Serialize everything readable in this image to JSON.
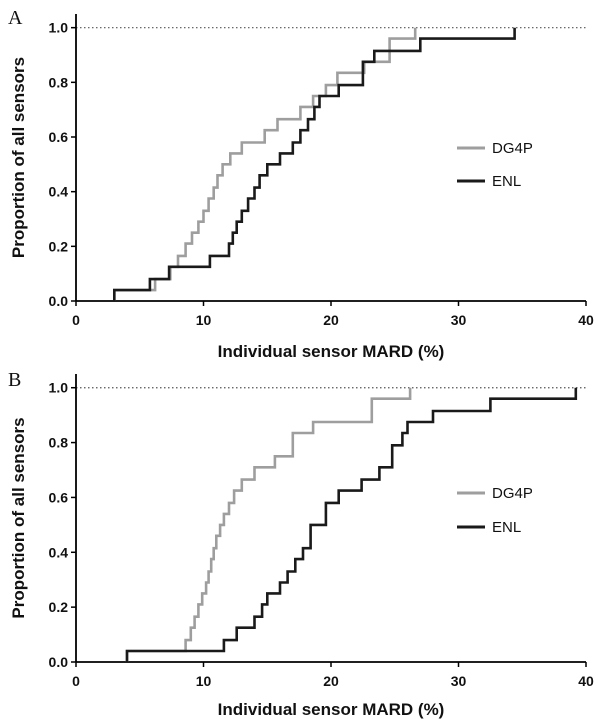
{
  "colors": {
    "dg4p": "#9e9e9e",
    "enl": "#1a1a1a",
    "axis": "#000000",
    "refline": "#555555"
  },
  "chart_data": [
    {
      "type": "line",
      "step": true,
      "panel_label": "A",
      "xlabel": "Individual sensor MARD (%)",
      "ylabel": "Proportion of all sensors",
      "xlim": [
        0,
        40
      ],
      "ylim": [
        0,
        1.05
      ],
      "x_ticks": [
        "0",
        "10",
        "20",
        "30",
        "40"
      ],
      "y_ticks": [
        "0.0",
        "0.2",
        "0.4",
        "0.6",
        "0.8",
        "1.0"
      ],
      "reference_line_y": 1.0,
      "legend_position": "right",
      "series": [
        {
          "name": "DG4P",
          "x": [
            3,
            6.2,
            7.4,
            8.0,
            8.6,
            9.1,
            9.6,
            10.0,
            10.4,
            10.8,
            11.1,
            11.5,
            12.1,
            13.0,
            14.8,
            15.8,
            17.6,
            18.6,
            19.6,
            20.5,
            22.6,
            24.6,
            26.6
          ],
          "y": [
            0.04,
            0.08,
            0.125,
            0.165,
            0.21,
            0.25,
            0.29,
            0.33,
            0.375,
            0.415,
            0.46,
            0.5,
            0.54,
            0.58,
            0.625,
            0.665,
            0.71,
            0.75,
            0.79,
            0.835,
            0.875,
            0.96,
            1.0
          ]
        },
        {
          "name": "ENL",
          "x": [
            3,
            5.8,
            7.3,
            10.5,
            12.0,
            12.3,
            12.6,
            13.0,
            13.5,
            14.0,
            14.4,
            15.0,
            16.0,
            17.0,
            17.6,
            18.2,
            18.7,
            19.1,
            20.6,
            22.5,
            23.4,
            27.0,
            34.4
          ],
          "y": [
            0.04,
            0.08,
            0.125,
            0.165,
            0.21,
            0.25,
            0.29,
            0.33,
            0.375,
            0.415,
            0.46,
            0.5,
            0.54,
            0.58,
            0.625,
            0.665,
            0.71,
            0.75,
            0.79,
            0.875,
            0.915,
            0.96,
            1.0
          ]
        }
      ]
    },
    {
      "type": "line",
      "step": true,
      "panel_label": "B",
      "xlabel": "Individual sensor MARD (%)",
      "ylabel": "Proportion of all sensors",
      "xlim": [
        0,
        40
      ],
      "ylim": [
        0,
        1.05
      ],
      "x_ticks": [
        "0",
        "10",
        "20",
        "30",
        "40"
      ],
      "y_ticks": [
        "0.0",
        "0.2",
        "0.4",
        "0.6",
        "0.8",
        "1.0"
      ],
      "reference_line_y": 1.0,
      "legend_position": "right",
      "series": [
        {
          "name": "DG4P",
          "x": [
            4,
            8.6,
            9.0,
            9.3,
            9.6,
            9.9,
            10.2,
            10.4,
            10.6,
            10.8,
            11.0,
            11.3,
            11.6,
            12.0,
            12.4,
            13.0,
            14.0,
            15.6,
            17.0,
            18.6,
            23.2,
            26.2
          ],
          "y": [
            0.04,
            0.08,
            0.125,
            0.165,
            0.21,
            0.25,
            0.29,
            0.33,
            0.375,
            0.415,
            0.46,
            0.5,
            0.54,
            0.58,
            0.625,
            0.665,
            0.71,
            0.75,
            0.835,
            0.875,
            0.96,
            1.0
          ]
        },
        {
          "name": "ENL",
          "x": [
            4,
            5.6,
            11.6,
            12.6,
            14.0,
            14.6,
            15.0,
            16.0,
            16.6,
            17.2,
            17.8,
            18.4,
            19.6,
            20.6,
            22.4,
            23.8,
            24.8,
            25.6,
            26.0,
            28.0,
            32.5,
            37.0,
            39.2
          ],
          "y": [
            0.04,
            0.04,
            0.08,
            0.125,
            0.165,
            0.21,
            0.25,
            0.29,
            0.33,
            0.375,
            0.415,
            0.5,
            0.58,
            0.625,
            0.665,
            0.71,
            0.79,
            0.835,
            0.875,
            0.915,
            0.96,
            0.96,
            1.0
          ]
        }
      ]
    }
  ]
}
